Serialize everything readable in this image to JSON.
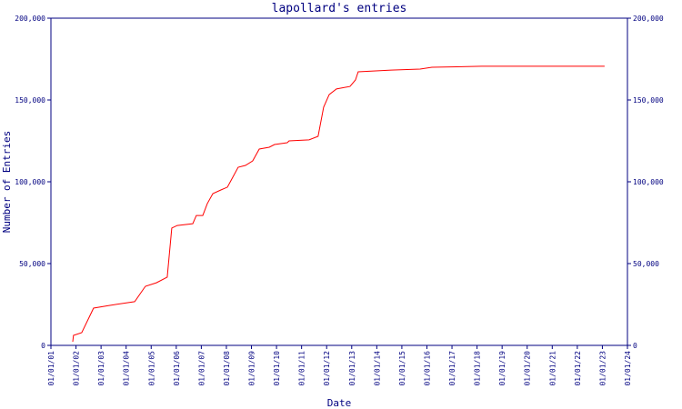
{
  "chart_data": {
    "type": "line",
    "title": "lapollard's entries",
    "x_label": "Date",
    "y_label": "Number of Entries",
    "xlim": [
      2001,
      2024
    ],
    "xticks": [
      {
        "value": 2001,
        "label": "01/01/01"
      },
      {
        "value": 2002,
        "label": "01/01/02"
      },
      {
        "value": 2003,
        "label": "01/01/03"
      },
      {
        "value": 2004,
        "label": "01/01/04"
      },
      {
        "value": 2005,
        "label": "01/01/05"
      },
      {
        "value": 2006,
        "label": "01/01/06"
      },
      {
        "value": 2007,
        "label": "01/01/07"
      },
      {
        "value": 2008,
        "label": "01/01/08"
      },
      {
        "value": 2009,
        "label": "01/01/09"
      },
      {
        "value": 2010,
        "label": "01/01/10"
      },
      {
        "value": 2011,
        "label": "01/01/11"
      },
      {
        "value": 2012,
        "label": "01/01/12"
      },
      {
        "value": 2013,
        "label": "01/01/13"
      },
      {
        "value": 2014,
        "label": "01/01/14"
      },
      {
        "value": 2015,
        "label": "01/01/15"
      },
      {
        "value": 2016,
        "label": "01/01/16"
      },
      {
        "value": 2017,
        "label": "01/01/17"
      },
      {
        "value": 2018,
        "label": "01/01/18"
      },
      {
        "value": 2019,
        "label": "01/01/19"
      },
      {
        "value": 2020,
        "label": "01/01/20"
      },
      {
        "value": 2021,
        "label": "01/01/21"
      },
      {
        "value": 2022,
        "label": "01/01/22"
      },
      {
        "value": 2023,
        "label": "01/01/23"
      },
      {
        "value": 2024,
        "label": "01/01/24"
      }
    ],
    "ylim": [
      0,
      200000
    ],
    "yticks": [
      0,
      {
        "value": 50000,
        "label": "50,000"
      },
      {
        "value": 100000,
        "label": "100,000"
      },
      {
        "value": 150000,
        "label": "150,000"
      },
      {
        "value": 200000,
        "label": "200,000"
      }
    ],
    "y2lim": [
      0,
      200000
    ],
    "y2ticks": [
      0,
      {
        "value": 50000,
        "label": "50,000"
      },
      {
        "value": 100000,
        "label": "100,000"
      },
      {
        "value": 150000,
        "label": "150,000"
      },
      {
        "value": 200000,
        "label": "200,000"
      }
    ],
    "series": [
      {
        "color": "#ff0000",
        "x": [
          2001.87,
          2001.9,
          2002.23,
          2002.7,
          2003.32,
          2004.34,
          2004.59,
          2004.77,
          2005.21,
          2005.64,
          2005.82,
          2006.04,
          2006.66,
          2006.8,
          2007.06,
          2007.24,
          2007.46,
          2007.78,
          2008.04,
          2008.47,
          2008.76,
          2009.05,
          2009.31,
          2009.71,
          2009.92,
          2010.43,
          2010.5,
          2011.3,
          2011.66,
          2011.88,
          2012.1,
          2012.39,
          2012.93,
          2013.15,
          2013.26,
          2014.57,
          2015.73,
          2016.2,
          2018.19,
          2023.09
        ],
        "values": [
          2200,
          6100,
          7800,
          22800,
          24400,
          26700,
          32200,
          36100,
          38300,
          41700,
          71700,
          73300,
          74400,
          79400,
          79400,
          86700,
          92800,
          95000,
          96700,
          108900,
          110000,
          112800,
          120000,
          121100,
          122800,
          123900,
          125000,
          125600,
          127800,
          145600,
          153300,
          156700,
          158300,
          162200,
          167200,
          168300,
          168900,
          170000,
          170600,
          170600
        ]
      }
    ]
  }
}
